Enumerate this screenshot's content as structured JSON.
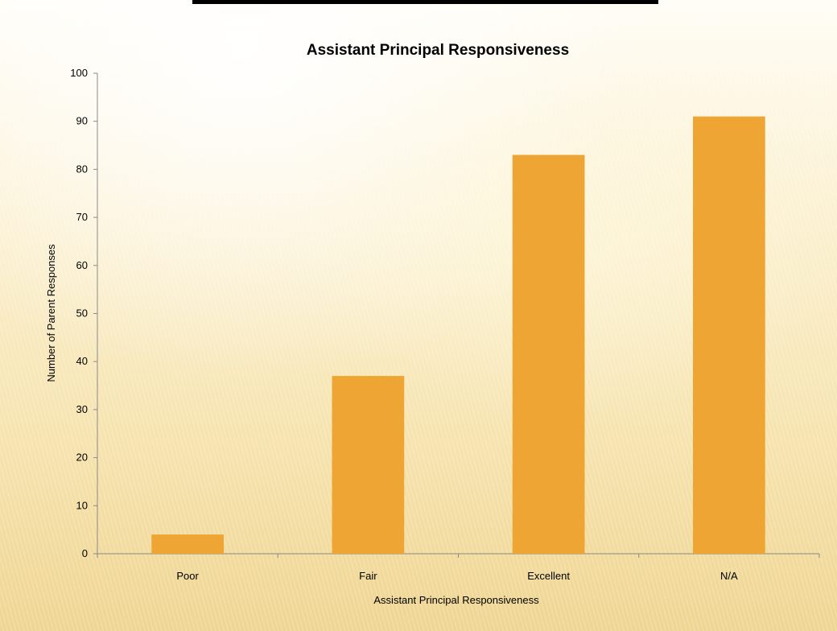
{
  "chart_data": {
    "type": "bar",
    "title": "Assistant Principal Responsiveness",
    "xlabel": "Assistant Principal Responsiveness",
    "ylabel": "Number of Parent Responses",
    "categories": [
      "Poor",
      "Fair",
      "Excellent",
      "N/A"
    ],
    "values": [
      4,
      37,
      83,
      91
    ],
    "ylim": [
      0,
      100
    ],
    "yticks": [
      "0",
      "10",
      "20",
      "30",
      "40",
      "50",
      "60",
      "70",
      "80",
      "90",
      "100"
    ],
    "grid": false,
    "legend": "none",
    "bar_color": "#efa533"
  }
}
